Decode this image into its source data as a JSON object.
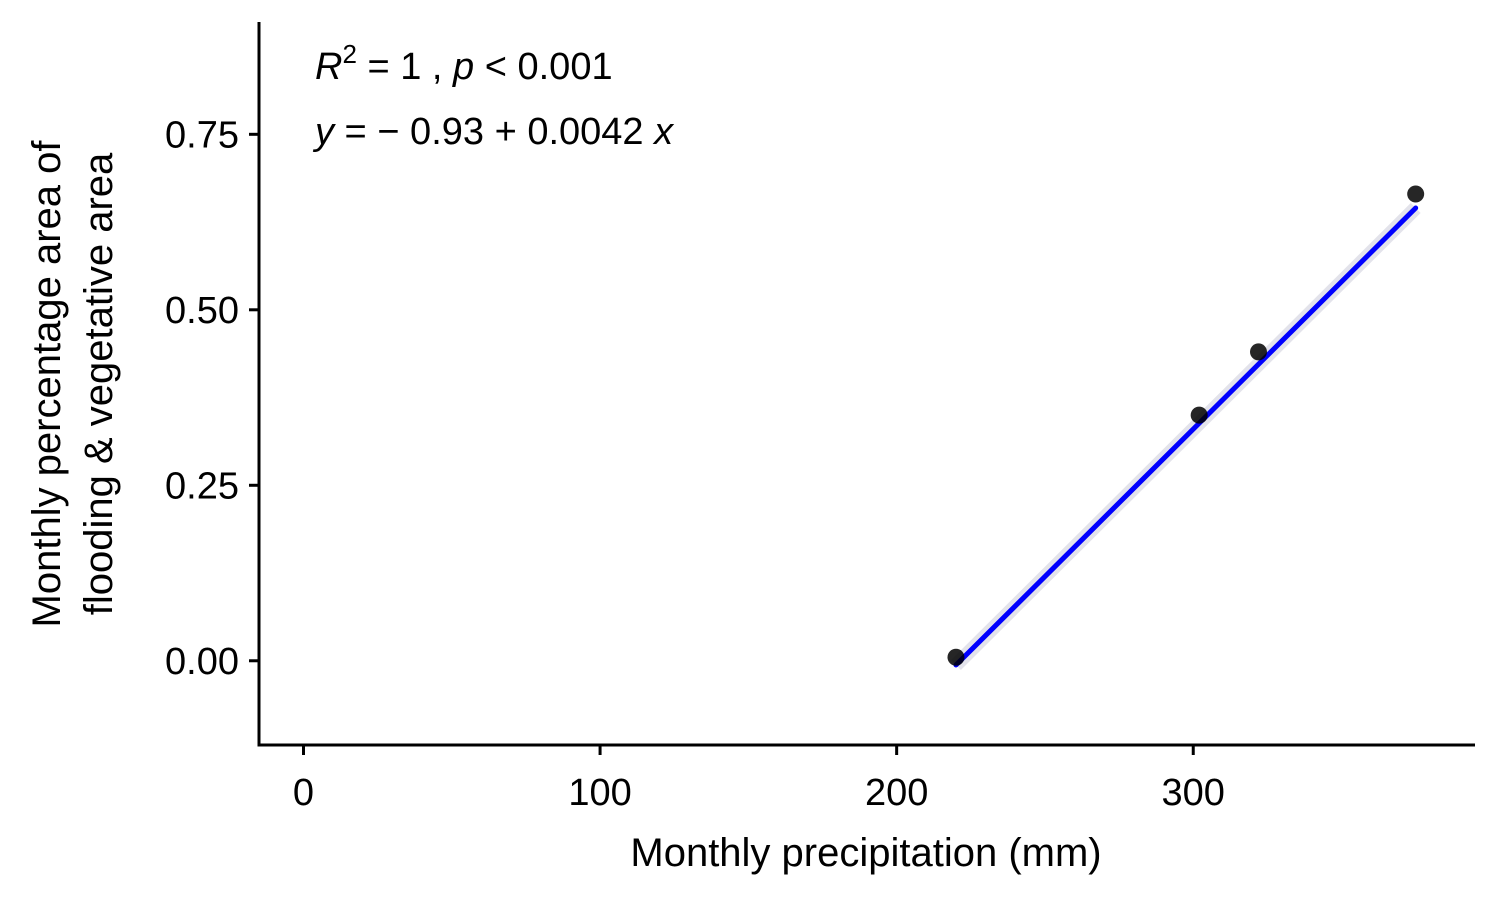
{
  "chart_data": {
    "type": "scatter",
    "xlabel": "Monthly precipitation (mm)",
    "ylabel_lines": [
      "Monthly percentage area of",
      "flooding & vegetative area"
    ],
    "xlim": [
      -15,
      395
    ],
    "ylim": [
      -0.12,
      0.91
    ],
    "x_ticks": [
      0,
      100,
      200,
      300
    ],
    "x_tick_labels": [
      "0",
      "100",
      "200",
      "300"
    ],
    "y_ticks": [
      0,
      0.25,
      0.5,
      0.75
    ],
    "y_tick_labels": [
      "0.00",
      "0.25",
      "0.50",
      "0.75"
    ],
    "points": [
      {
        "x": 220,
        "y": 0.005
      },
      {
        "x": 302,
        "y": 0.35
      },
      {
        "x": 322,
        "y": 0.44
      },
      {
        "x": 375,
        "y": 0.665
      }
    ],
    "fit_line": {
      "x_start": 220,
      "x_end": 375,
      "intercept": -0.93,
      "slope": 0.0042,
      "color": "#0000FF"
    },
    "annotation": {
      "r2_label": "R",
      "r2_sup": "2",
      "r2_rest": " = 1 , ",
      "p_label": "p",
      "p_rest": " < 0.001",
      "eq_y": "y",
      "eq_middle": " = − 0.93 + 0.0042 ",
      "eq_x": "x"
    },
    "point_color": "#000000",
    "grid": false
  }
}
